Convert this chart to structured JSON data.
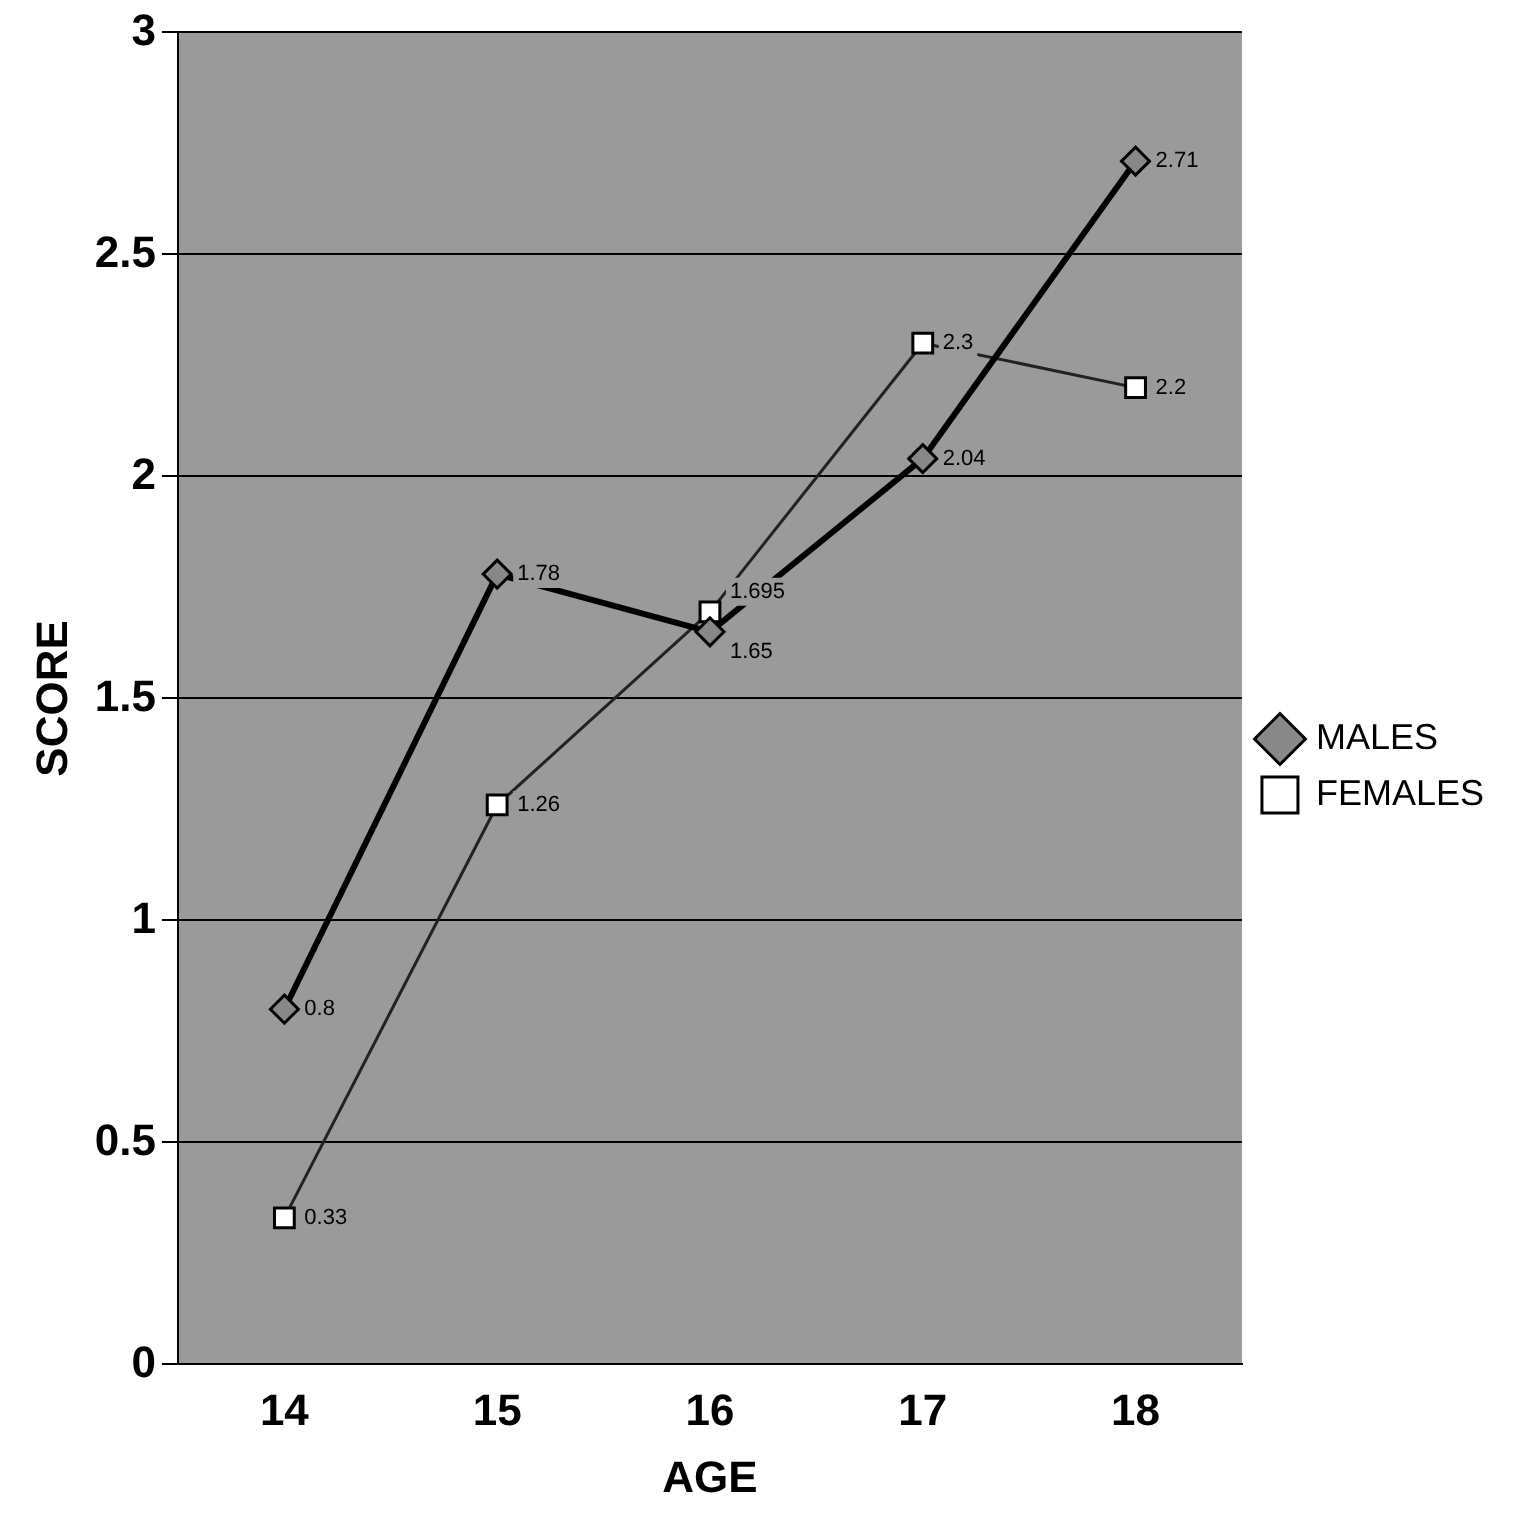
{
  "chart_data": {
    "type": "line",
    "xlabel": "AGE",
    "ylabel": "SCORE",
    "categories": [
      "14",
      "15",
      "16",
      "17",
      "18"
    ],
    "series": [
      {
        "name": "MALES",
        "color": "#000000",
        "marker": "diamond",
        "values": [
          0.8,
          1.78,
          1.65,
          2.04,
          2.71
        ]
      },
      {
        "name": "FEMALES",
        "color": "#ffffff",
        "marker": "square",
        "values": [
          0.33,
          1.26,
          1.695,
          2.3,
          2.2
        ]
      }
    ],
    "ylim": [
      0,
      3
    ],
    "yticks": [
      0,
      0.5,
      1,
      1.5,
      2,
      2.5,
      3
    ],
    "grid": "y",
    "legend": "right",
    "data_labels": true
  }
}
